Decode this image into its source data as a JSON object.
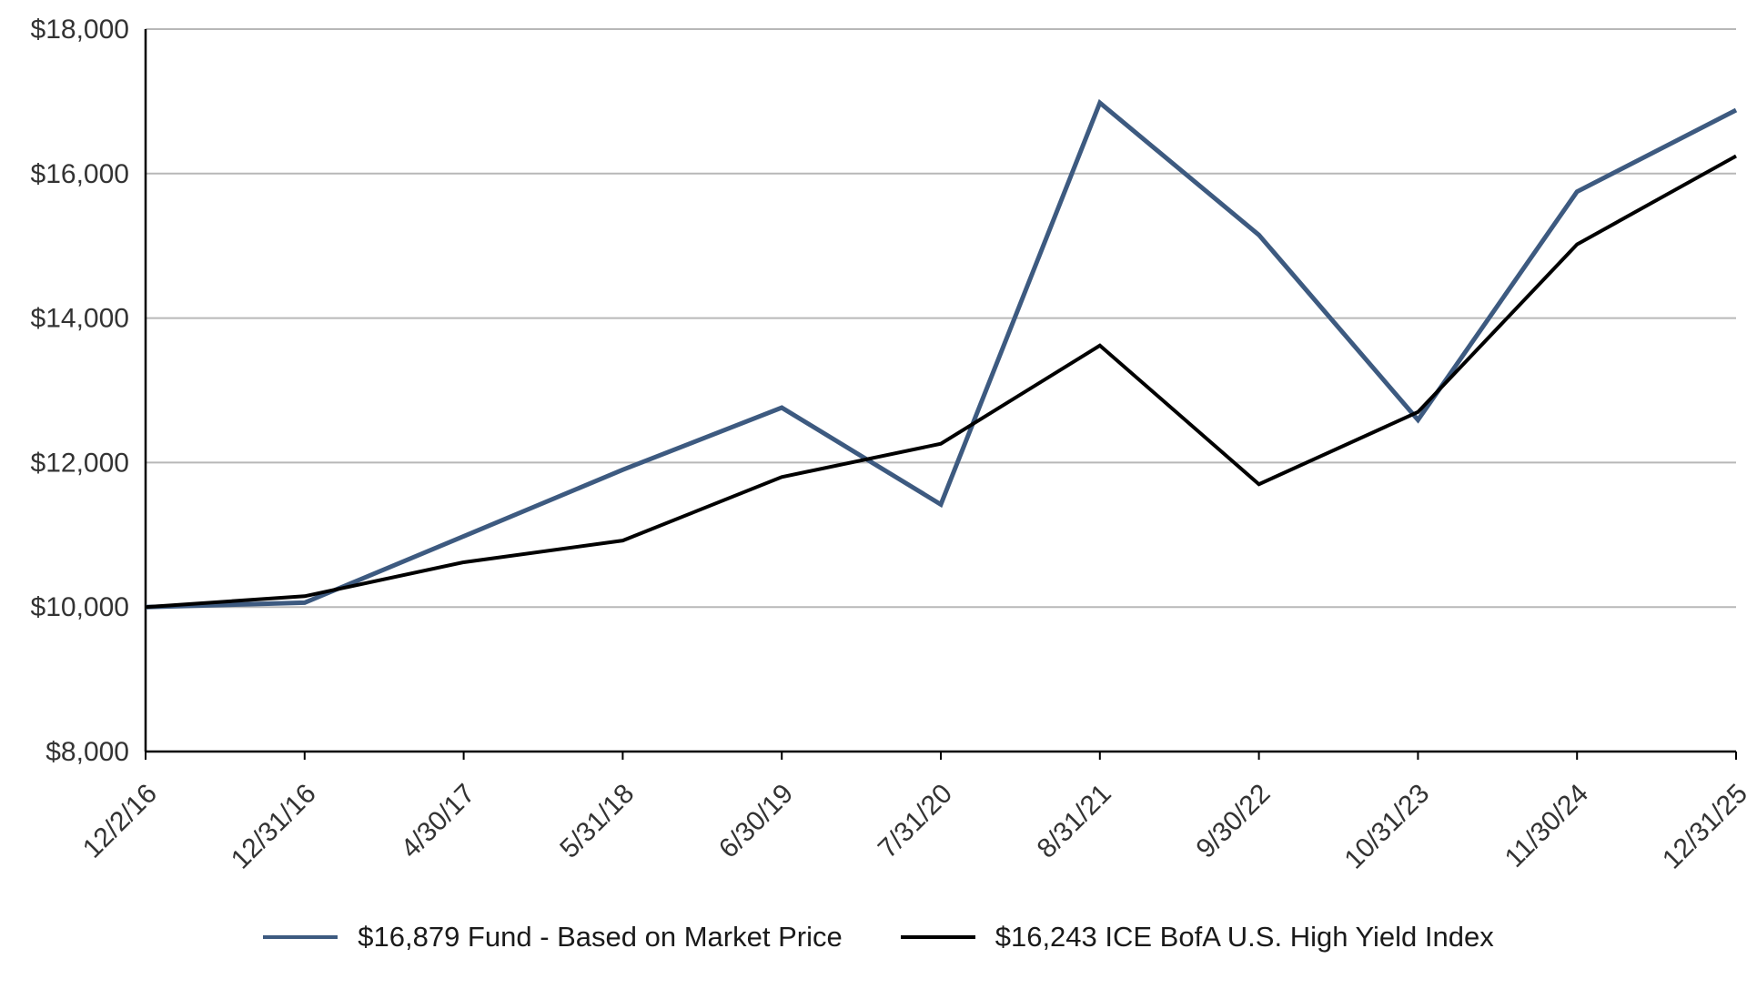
{
  "chart_data": {
    "type": "line",
    "title": "",
    "xlabel": "",
    "ylabel": "",
    "categories": [
      "12/2/16",
      "12/31/16",
      "4/30/17",
      "5/31/18",
      "6/30/19",
      "7/31/20",
      "8/31/21",
      "9/30/22",
      "10/31/23",
      "11/30/24",
      "12/31/25"
    ],
    "series": [
      {
        "name": "Fund - Based on Market Price",
        "legend_label": "$16,879 Fund - Based on Market Price",
        "final_value": 16879,
        "color": "#3d5a80",
        "stroke_width": 5,
        "values": [
          10000,
          10060,
          10980,
          11900,
          12760,
          11420,
          16980,
          15150,
          12590,
          15750,
          16879
        ]
      },
      {
        "name": "ICE BofA U.S. High Yield Index",
        "legend_label": "$16,243 ICE BofA U.S. High Yield Index",
        "final_value": 16243,
        "color": "#000000",
        "stroke_width": 4,
        "values": [
          10000,
          10150,
          10620,
          10920,
          11800,
          12260,
          13620,
          11700,
          12700,
          15020,
          16243
        ]
      }
    ],
    "ylim": [
      8000,
      18000
    ],
    "ytick_interval": 2000,
    "ytick_labels": [
      "$8,000",
      "$10,000",
      "$12,000",
      "$14,000",
      "$16,000",
      "$18,000"
    ],
    "grid": true,
    "gridline_color": "#b8b8b8",
    "axis_color": "#000000",
    "tick_label_color": "#333333",
    "legend_position": "bottom",
    "x_label_rotation_deg": -45
  }
}
